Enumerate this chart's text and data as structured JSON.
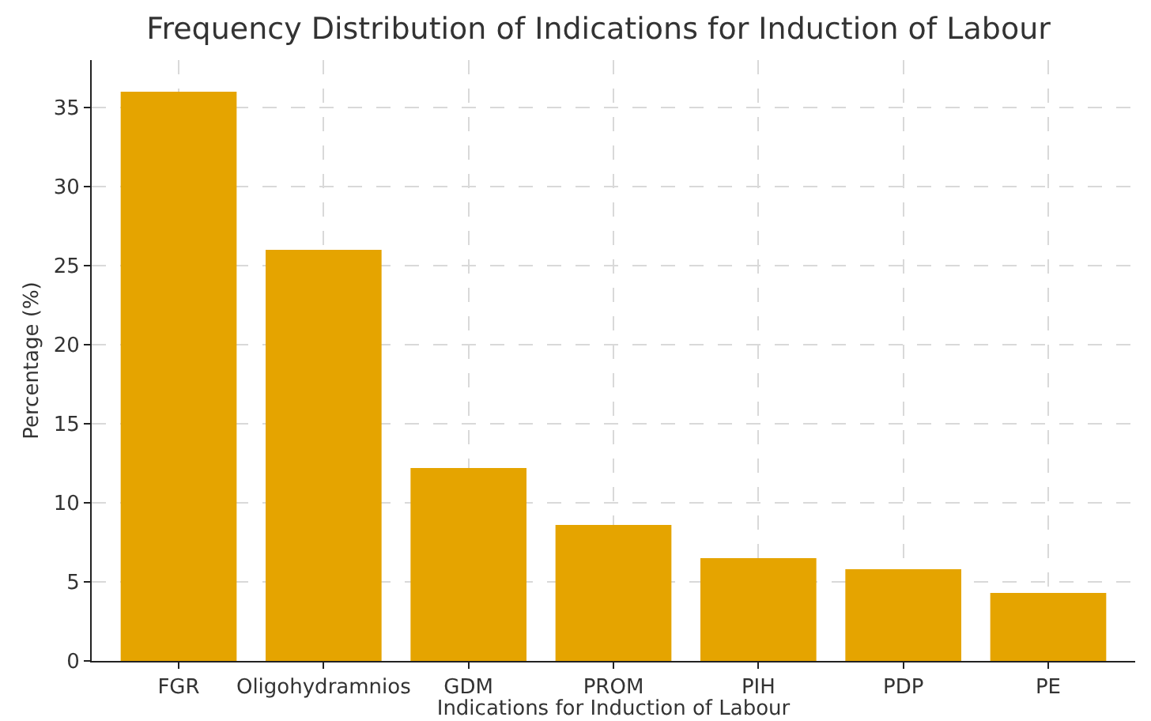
{
  "chart_data": {
    "type": "bar",
    "title": "Frequency Distribution of Indications for Induction of Labour",
    "xlabel": "Indications for Induction of Labour",
    "ylabel": "Percentage (%)",
    "categories": [
      "FGR",
      "Oligohydramnios",
      "GDM",
      "PROM",
      "PIH",
      "PDP",
      "PE"
    ],
    "values": [
      36,
      26,
      12.2,
      8.6,
      6.5,
      5.8,
      4.3
    ],
    "color": "#e5a400",
    "ylim": [
      0,
      38
    ],
    "yticks": [
      0,
      5,
      10,
      15,
      20,
      25,
      30,
      35
    ],
    "grid": true
  }
}
